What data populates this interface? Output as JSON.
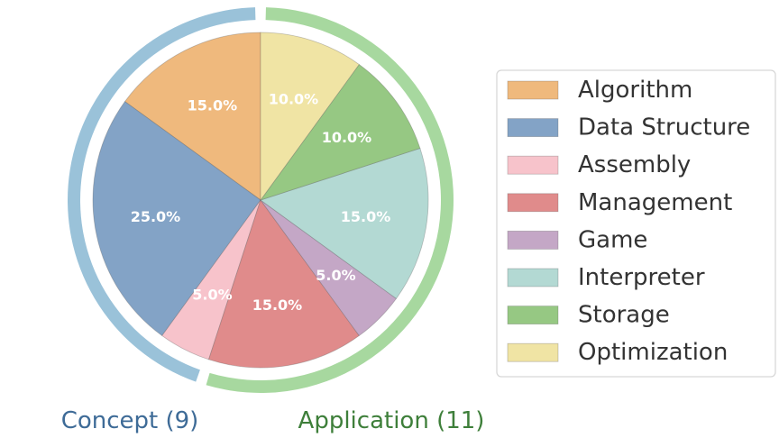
{
  "chart_data": {
    "type": "pie",
    "categories": [
      "Algorithm",
      "Data Structure",
      "Assembly",
      "Management",
      "Game",
      "Interpreter",
      "Storage",
      "Optimization"
    ],
    "values": [
      15.0,
      25.0,
      5.0,
      15.0,
      5.0,
      15.0,
      10.0,
      10.0
    ],
    "value_labels": [
      "15.0%",
      "25.0%",
      "5.0%",
      "15.0%",
      "5.0%",
      "15.0%",
      "10.0%",
      "10.0%"
    ],
    "colors": [
      "#efb97d",
      "#83a3c6",
      "#f7c3cb",
      "#e08b8b",
      "#c4a7c6",
      "#b3d9d3",
      "#96c883",
      "#f0e4a4"
    ],
    "start_angle_deg": 90,
    "direction": "counterclockwise",
    "groups": [
      {
        "label": "Concept (9)",
        "members": [
          "Algorithm",
          "Data Structure",
          "Assembly"
        ],
        "color": "#9ac2d9",
        "text_color": "#3e6b97"
      },
      {
        "label": "Application (11)",
        "members": [
          "Management",
          "Game",
          "Interpreter",
          "Storage",
          "Optimization"
        ],
        "color": "#a7d89f",
        "text_color": "#3e7f3a"
      }
    ],
    "legend": {
      "position": "right",
      "entries": [
        "Algorithm",
        "Data Structure",
        "Assembly",
        "Management",
        "Game",
        "Interpreter",
        "Storage",
        "Optimization"
      ]
    }
  }
}
